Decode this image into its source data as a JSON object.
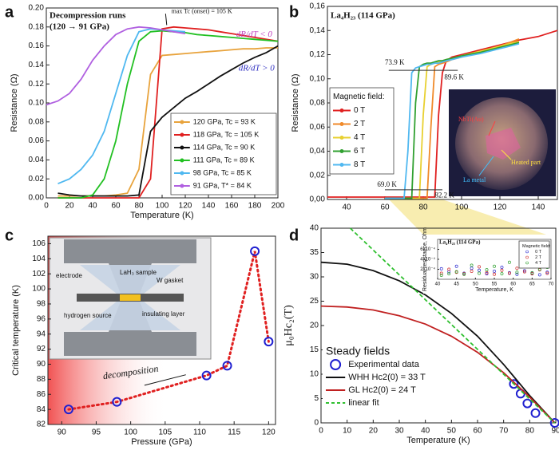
{
  "chart_data": [
    {
      "type": "line",
      "panel": "a",
      "title": "Decompression runs",
      "subtitle": "(120 → 91 GPa)",
      "x_label": "Temperature (K)",
      "y_label": "Resistance (Ω)",
      "annotations": [
        "max Tc (onset) = 105 K",
        "dR/dT < 0",
        "dR/dT > 0"
      ],
      "legend": true,
      "x": [
        0,
        10,
        20,
        30,
        40,
        50,
        60,
        70,
        80,
        90,
        100,
        110,
        120,
        130,
        140,
        150,
        160,
        170,
        180,
        190,
        200
      ],
      "xlim": [
        0,
        200
      ],
      "xticks": [
        0,
        20,
        40,
        60,
        80,
        100,
        120,
        140,
        160,
        180,
        200
      ],
      "ylim": [
        0,
        0.2
      ],
      "yticks": [
        {
          "value": 0,
          "label": "0.00"
        },
        {
          "value": 0.02,
          "label": "0.02"
        },
        {
          "value": 0.04,
          "label": "0.04"
        },
        {
          "value": 0.06,
          "label": "0.06"
        },
        {
          "value": 0.08,
          "label": "0.08"
        },
        {
          "value": 0.1,
          "label": "0.10"
        },
        {
          "value": 0.12,
          "label": "0.12"
        },
        {
          "value": 0.14,
          "label": "0.14"
        },
        {
          "value": 0.16,
          "label": "0.16"
        },
        {
          "value": 0.18,
          "label": "0.18"
        },
        {
          "value": 0.2,
          "label": "0.20"
        }
      ],
      "series": [
        {
          "name": "120 GPa, Tc = 93 K",
          "color": "#e8a33c",
          "values": [
            null,
            0.002,
            0.002,
            0.002,
            0.002,
            0.002,
            0.003,
            0.005,
            0.03,
            0.13,
            0.15,
            0.151,
            0.152,
            0.153,
            0.154,
            0.155,
            0.156,
            0.157,
            0.157,
            0.158,
            0.158
          ]
        },
        {
          "name": "118 GPa, Tc = 105 K",
          "color": "#e02020",
          "values": [
            null,
            0,
            0,
            0,
            0,
            0,
            0,
            0,
            0,
            0.02,
            0.178,
            0.18,
            0.179,
            0.178,
            0.177,
            0.175,
            0.173,
            0.171,
            0.169,
            0.167,
            0.165
          ]
        },
        {
          "name": "114 GPa, Tc = 90 K",
          "color": "#111111",
          "values": [
            null,
            0.005,
            0.003,
            0.002,
            0.002,
            0.002,
            0.002,
            0.002,
            0.003,
            0.07,
            0.085,
            0.095,
            0.105,
            0.112,
            0.12,
            0.128,
            0.135,
            0.142,
            0.148,
            0.153,
            0.16
          ]
        },
        {
          "name": "111 GPa, Tc = 89 K",
          "color": "#22c022",
          "values": [
            null,
            0,
            0,
            0,
            0.003,
            0.02,
            0.06,
            0.12,
            0.165,
            0.175,
            0.176,
            0.175,
            0.174,
            0.172,
            0.171,
            0.17,
            0.169,
            0.168,
            0.167,
            0.166,
            0.165
          ]
        },
        {
          "name": "98 GPa, Tc = 85 K",
          "color": "#4fb8f0",
          "values": [
            null,
            0.015,
            0.02,
            0.03,
            0.045,
            0.07,
            0.11,
            0.15,
            0.175,
            0.178,
            0.177,
            0.176,
            0.175,
            null,
            null,
            null,
            null,
            null,
            null,
            null,
            null
          ]
        },
        {
          "name": "91 GPa, T* = 84 K",
          "color": "#b060e0",
          "values": [
            0.098,
            0.102,
            0.11,
            0.125,
            0.145,
            0.16,
            0.172,
            0.178,
            0.18,
            0.179,
            0.177,
            0.175,
            0.173,
            null,
            null,
            null,
            null,
            null,
            null,
            null,
            null
          ]
        }
      ]
    },
    {
      "type": "line",
      "panel": "b",
      "title": "La₄H₂₃ (114 GPa)",
      "y_label": "Resistance (Ω)",
      "annotations": [
        "73.9 K",
        "89.6 K",
        "69.0 K",
        "82.2 K"
      ],
      "legend": true,
      "legend_title": "Magnetic field:",
      "inset_labels": [
        "NbTi(Au)",
        "Heated part",
        "La metal"
      ],
      "x": [
        30,
        40,
        50,
        60,
        65,
        70,
        72,
        74,
        76,
        78,
        80,
        82,
        84,
        86,
        88,
        90,
        92,
        95,
        100,
        110,
        120,
        130,
        140,
        150
      ],
      "xlim": [
        30,
        150
      ],
      "xticks": [
        40,
        60,
        80,
        100,
        120,
        140
      ],
      "ylim": [
        0,
        0.16
      ],
      "yticks": [
        {
          "value": 0,
          "label": "0,00"
        },
        {
          "value": 0.02,
          "label": "0,02"
        },
        {
          "value": 0.04,
          "label": "0,04"
        },
        {
          "value": 0.06,
          "label": "0,06"
        },
        {
          "value": 0.08,
          "label": "0,08"
        },
        {
          "value": 0.1,
          "label": "0,10"
        },
        {
          "value": 0.12,
          "label": "0,12"
        },
        {
          "value": 0.14,
          "label": "0,14"
        },
        {
          "value": 0.16,
          "label": "0,16"
        }
      ],
      "series": [
        {
          "name": "0 T",
          "color": "#e02020",
          "values": [
            0.002,
            0.002,
            0.002,
            0.002,
            0.002,
            0.002,
            0.002,
            0.002,
            0.002,
            0.002,
            0.002,
            0.002,
            0.002,
            0.002,
            0.07,
            0.105,
            0.115,
            0.118,
            0.12,
            0.124,
            0.128,
            0.132,
            0.135,
            0.14
          ]
        },
        {
          "name": "2 T",
          "color": "#f08a2a",
          "values": [
            null,
            null,
            null,
            0.001,
            0.001,
            0.001,
            0.001,
            0.001,
            0.001,
            0.001,
            0.001,
            0.001,
            0.06,
            0.11,
            0.112,
            0.113,
            0.114,
            0.116,
            0.118,
            0.122,
            0.127,
            0.133,
            null,
            null
          ]
        },
        {
          "name": "4 T",
          "color": "#e8d030",
          "values": [
            null,
            null,
            null,
            0.001,
            0.001,
            0.001,
            0.001,
            0.001,
            0.001,
            0.001,
            0.07,
            0.11,
            0.112,
            0.113,
            0.114,
            0.115,
            0.116,
            0.117,
            0.119,
            0.123,
            0.127,
            0.131,
            null,
            null
          ]
        },
        {
          "name": "6 T",
          "color": "#30a030",
          "values": [
            null,
            null,
            null,
            0.001,
            0.001,
            0.001,
            0.001,
            0.001,
            0.08,
            0.11,
            0.112,
            0.113,
            0.113,
            0.114,
            0.115,
            0.115,
            0.116,
            0.117,
            0.119,
            0.122,
            0.126,
            0.13,
            null,
            null
          ]
        },
        {
          "name": "8 T",
          "color": "#50b8f0",
          "values": [
            null,
            null,
            null,
            0.001,
            0.001,
            0.001,
            0.04,
            0.105,
            0.109,
            0.11,
            0.111,
            0.112,
            0.112,
            0.113,
            0.113,
            0.114,
            0.115,
            0.116,
            0.118,
            0.121,
            0.125,
            0.129,
            null,
            null
          ]
        }
      ]
    },
    {
      "type": "scatter",
      "panel": "c",
      "x_label": "Pressure (GPa)",
      "y_label": "Critical temperature (K)",
      "annotations": [
        "decomposition"
      ],
      "inset_labels": [
        "electrode",
        "LaH₃ sample",
        "W gasket",
        "hydrogen source",
        "insulating layer"
      ],
      "connect": true,
      "color": "#2020d0",
      "line_color": "#e02020",
      "x": [
        91,
        98,
        111,
        114,
        118,
        120
      ],
      "values": [
        84,
        85,
        88.5,
        89.8,
        105,
        93
      ],
      "xlim": [
        88,
        121
      ],
      "xticks": [
        90,
        95,
        100,
        105,
        110,
        115,
        120
      ],
      "ylim": [
        82,
        107
      ],
      "yticks": [
        82,
        84,
        86,
        88,
        90,
        92,
        94,
        96,
        98,
        100,
        102,
        104,
        106
      ]
    },
    {
      "type": "line",
      "panel": "d",
      "x_label": "Temperature (K)",
      "y_label": "μ₀Hc₂(T)",
      "legend": true,
      "legend_title": "Steady fields",
      "xlim": [
        0,
        90
      ],
      "xticks": [
        0,
        10,
        20,
        30,
        40,
        50,
        60,
        70,
        80,
        90
      ],
      "ylim": [
        0,
        40
      ],
      "yticks": [
        0,
        5,
        10,
        15,
        20,
        25,
        30,
        35,
        40
      ],
      "series": [
        {
          "name": "Experimental data",
          "type": "scatter",
          "color": "#2020d0",
          "x": [
            73.9,
            76.5,
            79.1,
            82.2,
            89.6
          ],
          "values": [
            8,
            6,
            4,
            2,
            0
          ]
        },
        {
          "name": "WHH Hc2(0) = 33 T",
          "color": "#111111",
          "x": [
            0,
            10,
            20,
            30,
            40,
            50,
            60,
            70,
            80,
            89.6
          ],
          "values": [
            33,
            32.6,
            31.3,
            29.2,
            26.3,
            22.5,
            17.8,
            12,
            5.6,
            0
          ]
        },
        {
          "name": "GL Hc2(0) = 24 T",
          "color": "#c02020",
          "x": [
            0,
            10,
            20,
            30,
            40,
            50,
            60,
            70,
            80,
            89.6
          ],
          "values": [
            24,
            23.8,
            23.2,
            22,
            20.3,
            17.8,
            14.5,
            10.3,
            5.3,
            0
          ]
        },
        {
          "name": "linear fit",
          "color": "#30c030",
          "dash": true,
          "x": [
            11.2,
            89.6
          ],
          "values": [
            40,
            0
          ]
        }
      ]
    },
    {
      "type": "scatter",
      "title": "La₄H₂₃ (114 GPa)",
      "x_label": "Temperature, K",
      "y_label": "Residual resistance, Ohm",
      "annotations": [
        "~10⁻⁴ Ω"
      ],
      "legend": true,
      "legend_title": "Magnetic field:",
      "x": [
        41,
        43,
        45,
        47,
        49,
        51,
        53,
        55,
        57,
        59,
        61,
        63,
        65,
        67,
        69
      ],
      "xlim": [
        40,
        70
      ],
      "xticks": [
        40,
        45,
        50,
        55,
        60,
        65,
        70
      ],
      "ylim": [
        0,
        0.0008
      ],
      "yticks": [
        {
          "value": 0.0002,
          "label": "2x10⁻⁴"
        },
        {
          "value": 0.0004,
          "label": "4x10⁻⁴"
        },
        {
          "value": 0.0006,
          "label": "6x10⁻⁴"
        }
      ],
      "series": [
        {
          "name": "0 T",
          "color": "#3030d0",
          "values": [
            0.00021,
            0.00015,
            0.00026,
            0.00012,
            0.00022,
            0.00018,
            0.00011,
            0.00016,
            0.00024,
            0.00013,
            0.0001,
            0.00017,
            0.00012,
            9e-05,
            0.00014
          ]
        },
        {
          "name": "2 T",
          "color": "#d03030",
          "values": [
            0.00012,
            0.0002,
            0.00014,
            0.00011,
            0.00016,
            0.00025,
            0.00013,
            0.0001,
            0.00018,
            0.00012,
            0.00022,
            0.00015,
            0.00011,
            0.00019,
            0.00012
          ]
        },
        {
          "name": "4 T",
          "color": "#30a030",
          "values": [
            8e-05,
            0.00011,
            0.00015,
            0.0001,
            0.00028,
            0.00012,
            0.00019,
            0.00026,
            0.00011,
            0.00034,
            0.00014,
            0.00045,
            0.00013,
            0.0002,
            0.00024
          ]
        }
      ]
    }
  ]
}
